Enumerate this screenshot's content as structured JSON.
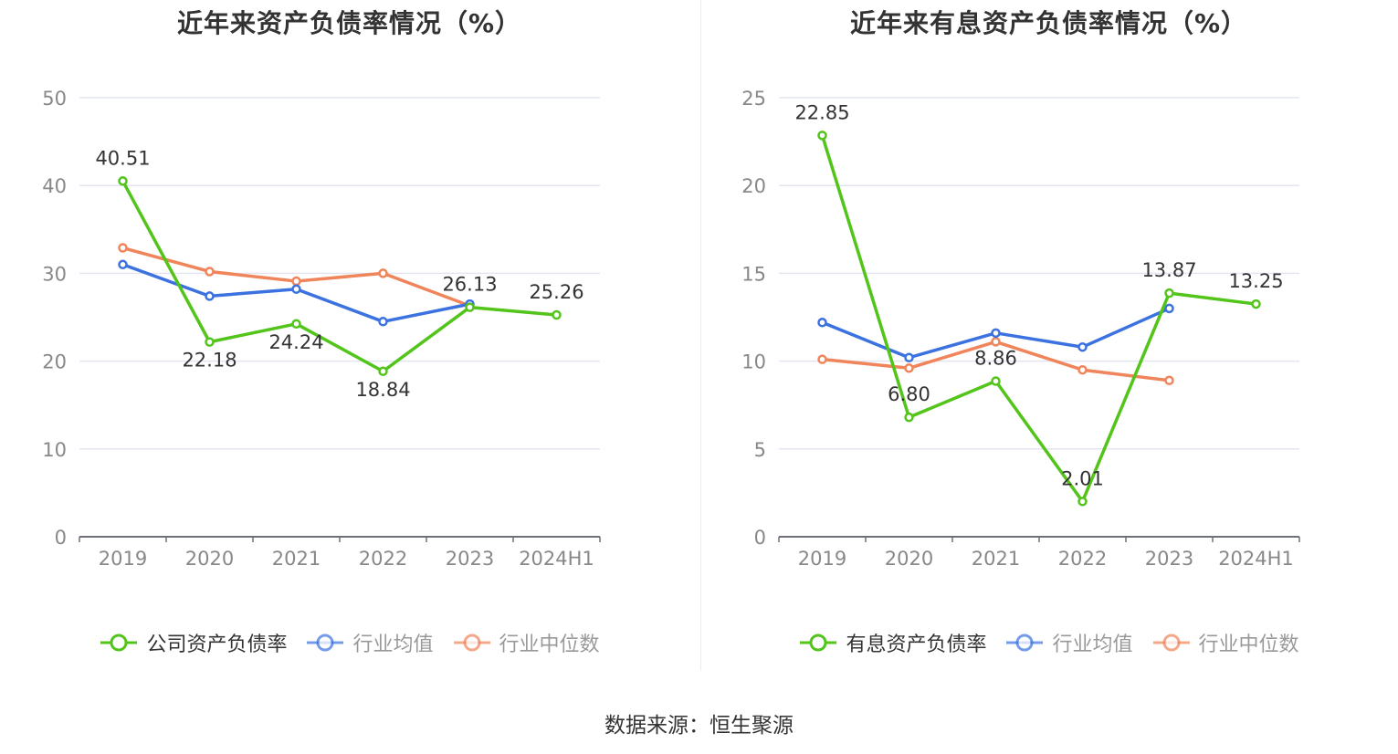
{
  "footer": {
    "source": "数据来源：恒生聚源"
  },
  "chart_data": [
    {
      "type": "line",
      "title": "近年来资产负债率情况（%）",
      "categories": [
        "2019",
        "2020",
        "2021",
        "2022",
        "2023",
        "2024H1"
      ],
      "ylim": [
        0,
        50
      ],
      "yticks": [
        0,
        10,
        20,
        30,
        40,
        50
      ],
      "grid": true,
      "legend_position": "bottom",
      "series": [
        {
          "name": "公司资产负债率",
          "color": "#52c41a",
          "values": [
            40.51,
            22.18,
            24.24,
            18.84,
            26.13,
            25.26
          ],
          "labels": [
            "40.51",
            "22.18",
            "24.24",
            "18.84",
            "26.13",
            "25.26"
          ]
        },
        {
          "name": "行业均值",
          "color": "#3b72e0",
          "values": [
            31.0,
            27.4,
            28.2,
            24.5,
            26.5,
            null
          ]
        },
        {
          "name": "行业中位数",
          "color": "#f0845a",
          "values": [
            32.9,
            30.2,
            29.1,
            30.0,
            26.3,
            null
          ]
        }
      ]
    },
    {
      "type": "line",
      "title": "近年来有息资产负债率情况（%）",
      "categories": [
        "2019",
        "2020",
        "2021",
        "2022",
        "2023",
        "2024H1"
      ],
      "ylim": [
        0,
        25
      ],
      "yticks": [
        0,
        5,
        10,
        15,
        20,
        25
      ],
      "grid": true,
      "legend_position": "bottom",
      "series": [
        {
          "name": "有息资产负债率",
          "color": "#52c41a",
          "values": [
            22.85,
            6.8,
            8.86,
            2.01,
            13.87,
            13.25
          ],
          "labels": [
            "22.85",
            "6.80",
            "8.86",
            "2.01",
            "13.87",
            "13.25"
          ]
        },
        {
          "name": "行业均值",
          "color": "#3b72e0",
          "values": [
            12.2,
            10.2,
            11.6,
            10.8,
            13.0,
            null
          ]
        },
        {
          "name": "行业中位数",
          "color": "#f0845a",
          "values": [
            10.1,
            9.6,
            11.1,
            9.5,
            8.9,
            null
          ]
        }
      ]
    }
  ]
}
